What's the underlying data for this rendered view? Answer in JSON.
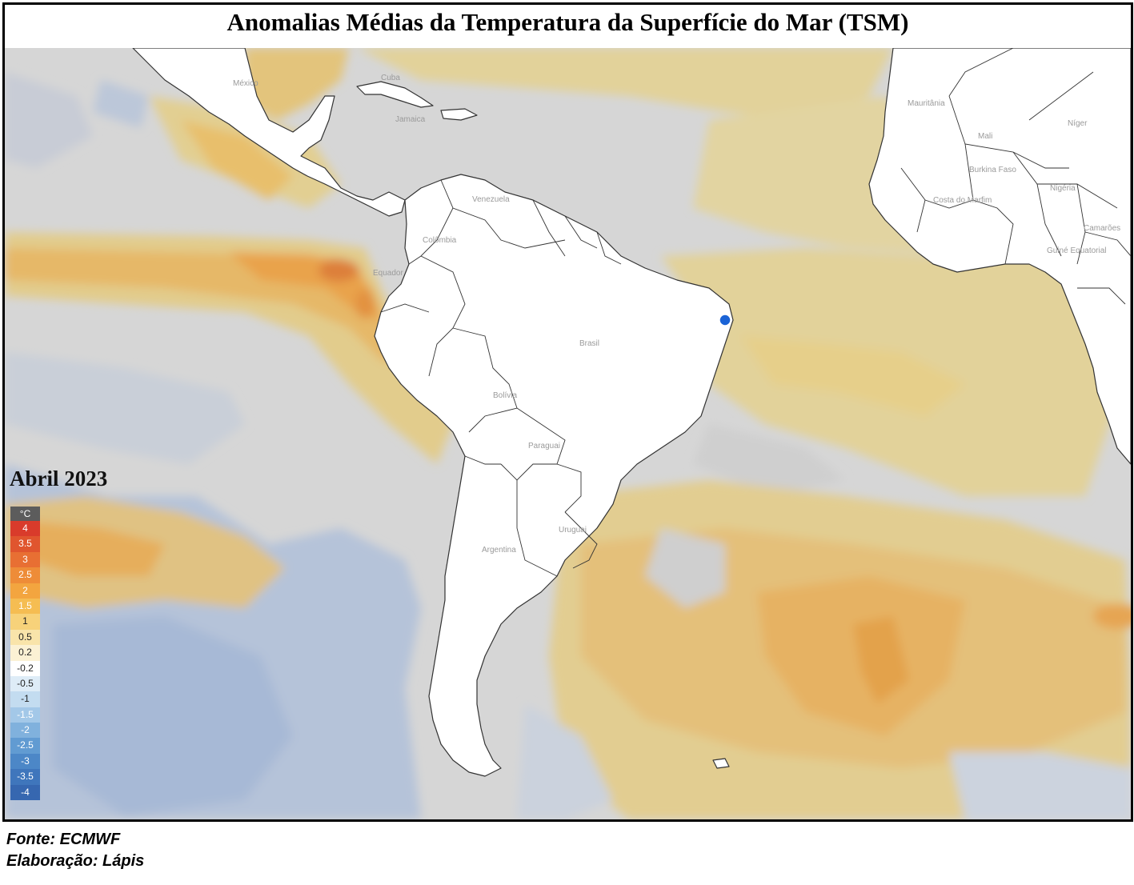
{
  "title": "Anomalias Médias da Temperatura da Superfície do Mar (TSM)",
  "period": "Abril 2023",
  "legend": {
    "unit": "°C",
    "items": [
      {
        "label": "4",
        "color": "#d93b2b"
      },
      {
        "label": "3.5",
        "color": "#e0552e"
      },
      {
        "label": "3",
        "color": "#e86f33"
      },
      {
        "label": "2.5",
        "color": "#ee8c38"
      },
      {
        "label": "2",
        "color": "#f3a53f"
      },
      {
        "label": "1.5",
        "color": "#f5bd52"
      },
      {
        "label": "1",
        "color": "#f7d27a"
      },
      {
        "label": "0.5",
        "color": "#f9e4aa"
      },
      {
        "label": "0.2",
        "color": "#fbf1d4"
      },
      {
        "label": "-0.2",
        "color": "#ffffff"
      },
      {
        "label": "-0.5",
        "color": "#deecf7"
      },
      {
        "label": "-1",
        "color": "#c3dcf0"
      },
      {
        "label": "-1.5",
        "color": "#a3c8e8"
      },
      {
        "label": "-2",
        "color": "#80b1dd"
      },
      {
        "label": "-2.5",
        "color": "#619bd2"
      },
      {
        "label": "-3",
        "color": "#4c87c7"
      },
      {
        "label": "-3.5",
        "color": "#3f76bc"
      },
      {
        "label": "-4",
        "color": "#3667b0"
      }
    ]
  },
  "map": {
    "ocean_color": "#d6d6d6",
    "land_color": "#ffffff",
    "warm_color": "#e2d29a",
    "cold_color": "#b7c3d6",
    "marker": {
      "color": "#1b63d6",
      "label": ""
    },
    "country_labels": [
      "México",
      "Cuba",
      "Jamaica",
      "Venezuela",
      "Colômbia",
      "Equador",
      "Brasil",
      "Bolívia",
      "Paraguai",
      "Uruguai",
      "Argentina",
      "Mauritânia",
      "Mali",
      "Níger",
      "Burkina Faso",
      "Costa do Marfim",
      "Nigéria",
      "Camarões",
      "Guiné Equatorial"
    ]
  },
  "footer": {
    "source": "Fonte: ECMWF",
    "credit": "Elaboração: Lápis"
  }
}
